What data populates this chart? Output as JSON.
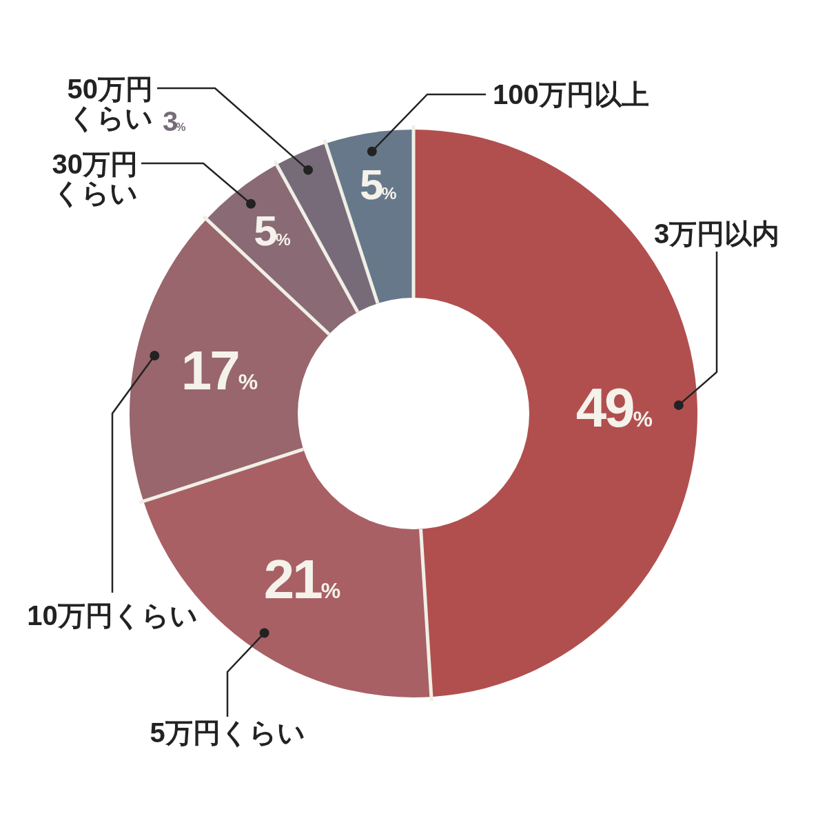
{
  "chart_data": {
    "type": "donut",
    "categories": [
      "3万円以内",
      "5万円くらい",
      "10万円くらい",
      "30万円くらい",
      "50万円くらい",
      "100万円以上"
    ],
    "values": [
      49,
      21,
      17,
      5,
      3,
      5
    ],
    "colors": [
      "#b14f4f",
      "#a86064",
      "#98666c",
      "#8a6a75",
      "#776b7a",
      "#67788b"
    ],
    "value_labels": [
      "49%",
      "21%",
      "17%",
      "5%",
      "3%",
      "5%"
    ]
  }
}
